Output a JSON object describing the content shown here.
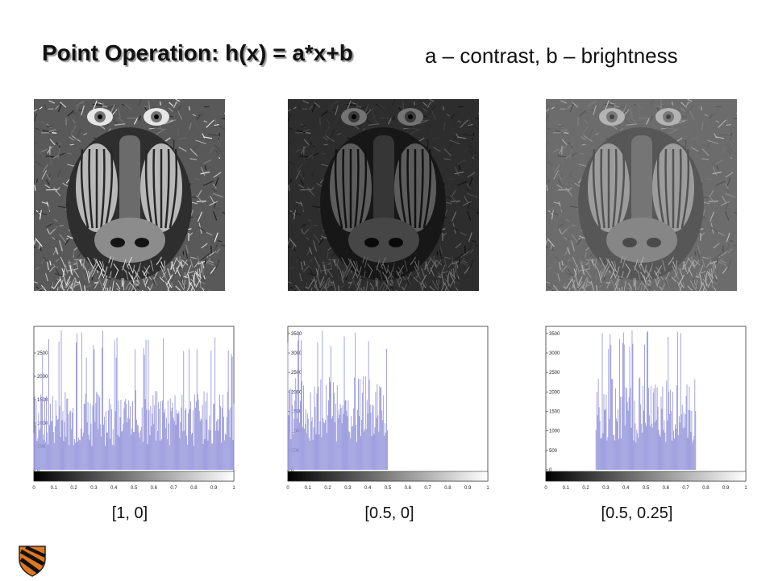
{
  "slide": {
    "title": "Point Operation: h(x) = a*x+b",
    "subtitle": "a – contrast,  b – brightness"
  },
  "panels": [
    {
      "name": "original",
      "a": 1,
      "b": 0,
      "caption": "[1, 0]",
      "image_tone": "full-contrast"
    },
    {
      "name": "low-contrast",
      "a": 0.5,
      "b": 0,
      "caption": "[0.5, 0]",
      "image_tone": "dark-low-contrast"
    },
    {
      "name": "low-contrast-brighter",
      "a": 0.5,
      "b": 0.25,
      "caption": "[0.5, 0.25]",
      "image_tone": "mid-gray-low-contrast"
    }
  ],
  "chart_data": [
    {
      "type": "bar",
      "title": "",
      "xlabel": "",
      "ylabel": "",
      "xlim": [
        0,
        1
      ],
      "ylim": [
        0,
        3000
      ],
      "x_ticks": [
        "0",
        "0.1",
        "0.2",
        "0.3",
        "0.4",
        "0.5",
        "0.6",
        "0.7",
        "0.8",
        "0.9",
        "1"
      ],
      "y_ticks": [
        "0",
        "500",
        "1000",
        "1500",
        "2000",
        "2500"
      ],
      "bar_color": "#9999dd",
      "occupied_range": [
        0,
        1
      ],
      "colorbar": "black-to-white gradient"
    },
    {
      "type": "bar",
      "title": "",
      "xlabel": "",
      "ylabel": "",
      "xlim": [
        0,
        1
      ],
      "ylim": [
        0,
        3600
      ],
      "x_ticks": [
        "0",
        "0.1",
        "0.2",
        "0.3",
        "0.4",
        "0.5",
        "0.6",
        "0.7",
        "0.8",
        "0.9",
        "1"
      ],
      "y_ticks": [
        "0",
        "500",
        "1000",
        "1500",
        "2000",
        "2500",
        "3000",
        "3500"
      ],
      "bar_color": "#9999dd",
      "occupied_range": [
        0,
        0.5
      ],
      "colorbar": "black-to-white gradient"
    },
    {
      "type": "bar",
      "title": "",
      "xlabel": "",
      "ylabel": "",
      "xlim": [
        0,
        1
      ],
      "ylim": [
        0,
        3600
      ],
      "x_ticks": [
        "0",
        "0.1",
        "0.2",
        "0.3",
        "0.4",
        "0.5",
        "0.6",
        "0.7",
        "0.8",
        "0.9",
        "1"
      ],
      "y_ticks": [
        "0",
        "500",
        "1000",
        "1500",
        "2000",
        "2500",
        "3000",
        "3500"
      ],
      "bar_color": "#9999dd",
      "occupied_range": [
        0.25,
        0.75
      ],
      "colorbar": "black-to-white gradient"
    }
  ]
}
